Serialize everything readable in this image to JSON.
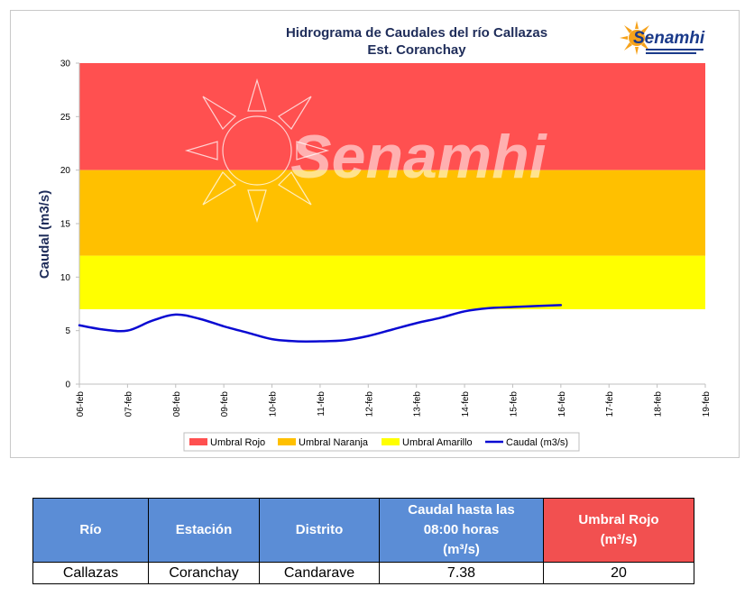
{
  "chart_data": {
    "type": "line",
    "title_line1": "Hidrograma de Caudales del río Callazas",
    "title_line2": "Est. Coranchay",
    "ylabel": "Caudal (m3/s)",
    "xlabel": "",
    "ylim": [
      0,
      30
    ],
    "yticks": [
      0,
      5,
      10,
      15,
      20,
      25,
      30
    ],
    "x_tick_labels": [
      "06-feb",
      "07-feb",
      "08-feb",
      "09-feb",
      "10-feb",
      "11-feb",
      "12-feb",
      "13-feb",
      "14-feb",
      "15-feb",
      "16-feb",
      "17-feb",
      "18-feb",
      "19-feb"
    ],
    "grid": false,
    "legend_position": "bottom",
    "bands": [
      {
        "name": "Umbral Rojo",
        "from": 20,
        "to": 30,
        "color": "#ff5050"
      },
      {
        "name": "Umbral Naranja",
        "from": 12,
        "to": 20,
        "color": "#ffc000"
      },
      {
        "name": "Umbral Amarillo",
        "from": 7,
        "to": 12,
        "color": "#ffff00"
      }
    ],
    "series": [
      {
        "name": "Caudal (m3/s)",
        "color": "#0a0ad2",
        "x": [
          0,
          0.5,
          1,
          1.5,
          2,
          2.5,
          3,
          3.5,
          4,
          4.5,
          5,
          5.5,
          6,
          6.5,
          7,
          7.5,
          8,
          8.5,
          9,
          9.5,
          10
        ],
        "values": [
          5.5,
          5.1,
          5.0,
          5.9,
          6.5,
          6.1,
          5.4,
          4.8,
          4.2,
          4.0,
          4.0,
          4.1,
          4.5,
          5.1,
          5.7,
          6.2,
          6.8,
          7.1,
          7.2,
          7.3,
          7.38
        ]
      }
    ]
  },
  "watermark": "Senamhi",
  "logo": {
    "name": "Senamhi",
    "icon": "sun-logo-icon",
    "color": "#1a3a8a",
    "sun_color": "#f6a21a"
  },
  "table": {
    "headers": {
      "rio": "Río",
      "estacion": "Estación",
      "distrito": "Distrito",
      "caudal_l1": "Caudal hasta las",
      "caudal_l2": "08:00 horas",
      "caudal_l3": "(m³/s)",
      "umbral_l1": "Umbral Rojo",
      "umbral_l2": "(m³/s)"
    },
    "row": {
      "rio": "Callazas",
      "estacion": "Coranchay",
      "distrito": "Candarave",
      "caudal": "7.38",
      "umbral": "20"
    }
  }
}
